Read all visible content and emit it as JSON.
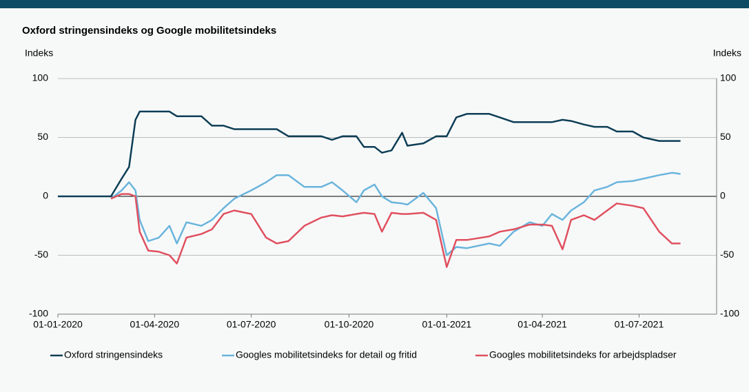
{
  "chart_data": {
    "type": "line",
    "title": "Oxford stringensindeks og Google mobilitetsindeks",
    "y_label": "Indeks",
    "y2_label": "Indeks",
    "x": [
      "01-01-2020",
      "20-02-2020",
      "01-03-2020",
      "08-03-2020",
      "14-03-2020",
      "18-03-2020",
      "26-03-2020",
      "05-04-2020",
      "15-04-2020",
      "22-04-2020",
      "01-05-2020",
      "15-05-2020",
      "25-05-2020",
      "05-06-2020",
      "15-06-2020",
      "01-07-2020",
      "15-07-2020",
      "25-07-2020",
      "05-08-2020",
      "20-08-2020",
      "05-09-2020",
      "15-09-2020",
      "25-09-2020",
      "08-10-2020",
      "15-10-2020",
      "25-10-2020",
      "01-11-2020",
      "10-11-2020",
      "20-11-2020",
      "25-11-2020",
      "10-12-2020",
      "22-12-2020",
      "01-01-2021",
      "10-01-2021",
      "20-01-2021",
      "10-02-2021",
      "20-02-2021",
      "05-03-2021",
      "20-03-2021",
      "01-04-2021",
      "10-04-2021",
      "20-04-2021",
      "28-04-2021",
      "10-05-2021",
      "20-05-2021",
      "01-06-2021",
      "10-06-2021",
      "25-06-2021",
      "05-07-2021",
      "20-07-2021",
      "01-08-2021",
      "09-08-2021"
    ],
    "series": [
      {
        "name": "Oxford stringensindeks",
        "color": "#0d3d55",
        "values": [
          0,
          0,
          15,
          25,
          65,
          72,
          72,
          72,
          72,
          68,
          68,
          68,
          60,
          60,
          57,
          57,
          57,
          57,
          51,
          51,
          51,
          48,
          51,
          51,
          42,
          42,
          37,
          39,
          54,
          43,
          45,
          51,
          51,
          67,
          70,
          70,
          67,
          63,
          63,
          63,
          63,
          65,
          64,
          61,
          59,
          59,
          55,
          55,
          50,
          47,
          47,
          47
        ]
      },
      {
        "name": "Googles mobilitetsindeks for detail og fritid",
        "color": "#6ab4dc",
        "values": [
          null,
          -2,
          5,
          12,
          5,
          -20,
          -38,
          -35,
          -25,
          -40,
          -22,
          -25,
          -20,
          -10,
          -2,
          5,
          12,
          18,
          18,
          8,
          8,
          12,
          5,
          -5,
          5,
          10,
          0,
          -5,
          -6,
          -7,
          3,
          -10,
          -50,
          -43,
          -44,
          -40,
          -42,
          -30,
          -22,
          -25,
          -15,
          -20,
          -12,
          -5,
          5,
          8,
          12,
          13,
          15,
          18,
          20,
          19
        ]
      },
      {
        "name": "Googles mobilitetsindeks for arbejdspladser",
        "color": "#e0505f",
        "values": [
          null,
          -2,
          2,
          2,
          0,
          -30,
          -46,
          -47,
          -50,
          -57,
          -35,
          -32,
          -28,
          -15,
          -12,
          -15,
          -35,
          -40,
          -38,
          -25,
          -18,
          -16,
          -17,
          -15,
          -14,
          -15,
          -30,
          -14,
          -15,
          -15,
          -14,
          -20,
          -60,
          -37,
          -37,
          -34,
          -30,
          -28,
          -24,
          -24,
          -25,
          -45,
          -20,
          -16,
          -20,
          -12,
          -6,
          -8,
          -10,
          -30,
          -40,
          -40
        ]
      }
    ],
    "xlim": [
      "01-01-2020",
      "12-09-2021"
    ],
    "xticks": [
      "01-01-2020",
      "01-04-2020",
      "01-07-2020",
      "01-10-2020",
      "01-01-2021",
      "01-04-2021",
      "01-07-2021"
    ],
    "ylim": [
      -100,
      100
    ],
    "yticks": [
      -100,
      -50,
      0,
      50,
      100
    ],
    "y2lim": [
      -100,
      100
    ],
    "y2ticks": [
      -100,
      -50,
      0,
      50,
      100
    ],
    "grid": true,
    "legend": "bottom"
  }
}
